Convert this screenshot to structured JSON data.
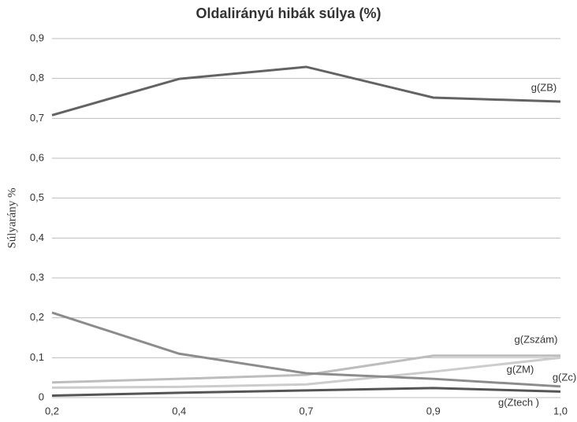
{
  "chart_data": {
    "type": "line",
    "title": "Oldalirányú hibák súlya (%)",
    "y_label": "Súlyarány %",
    "categories": [
      "0,2",
      "0,4",
      "0,7",
      "0,9",
      "1,0"
    ],
    "series": [
      {
        "name": "g(ZB)",
        "color": "#636363",
        "values": [
          0.708,
          0.799,
          0.829,
          0.752,
          0.742
        ]
      },
      {
        "name": "g(Zszám)",
        "color": "#bdbdbd",
        "values": [
          0.038,
          0.047,
          0.057,
          0.105,
          0.105
        ]
      },
      {
        "name": "g(ZM)",
        "color": "#cccccc",
        "values": [
          0.025,
          0.027,
          0.033,
          0.065,
          0.1
        ]
      },
      {
        "name": "g(Zc)",
        "color": "#8c8c8c",
        "values": [
          0.213,
          0.11,
          0.061,
          0.047,
          0.028
        ]
      },
      {
        "name": "g(Ztech )",
        "color": "#555555",
        "values": [
          0.005,
          0.012,
          0.018,
          0.024,
          0.015
        ]
      }
    ],
    "ylim": [
      0,
      0.9
    ],
    "yticks": [
      0,
      {
        "value": 0.1,
        "label": "0,1"
      },
      {
        "value": 0.2,
        "label": "0,2"
      },
      {
        "value": 0.3,
        "label": "0,3"
      },
      {
        "value": 0.4,
        "label": "0,4"
      },
      {
        "value": 0.5,
        "label": "0,5"
      },
      {
        "value": 0.6,
        "label": "0,6"
      },
      {
        "value": 0.7,
        "label": "0,7"
      },
      {
        "value": 0.8,
        "label": "0,8"
      },
      {
        "value": 0.9,
        "label": "0,9"
      }
    ],
    "grid": true
  }
}
